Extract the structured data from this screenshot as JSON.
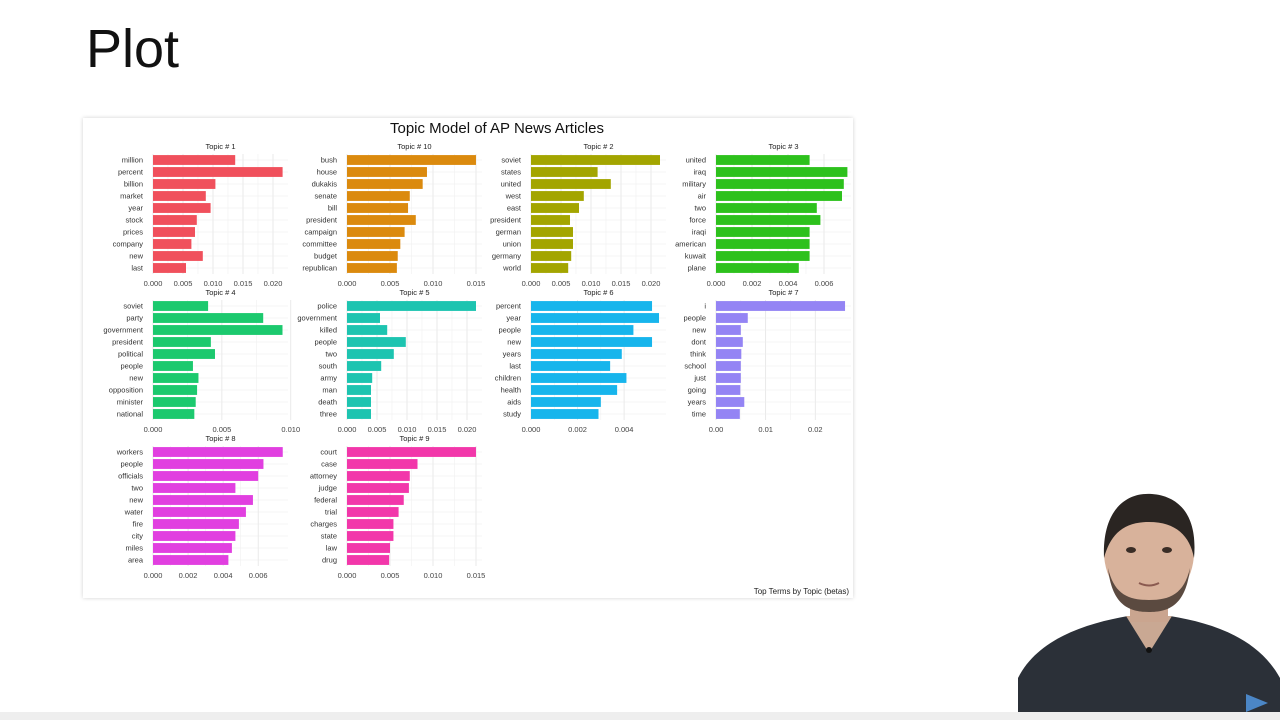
{
  "slide": {
    "title": "Plot"
  },
  "chart_data": {
    "type": "bar",
    "orientation": "horizontal",
    "layout": "facet-grid",
    "title": "Topic Model of AP News Articles",
    "caption": "Top Terms by Topic (betas)",
    "grid": true,
    "panels": [
      {
        "title": "Topic # 1",
        "color": "#F0505C",
        "terms": [
          "million",
          "percent",
          "billion",
          "market",
          "year",
          "stock",
          "prices",
          "company",
          "new",
          "last"
        ],
        "values": [
          0.0137,
          0.0216,
          0.0104,
          0.0088,
          0.0096,
          0.0073,
          0.007,
          0.0064,
          0.0083,
          0.0055
        ],
        "xlim": [
          0,
          0.0225
        ],
        "ticks": [
          0,
          0.005,
          0.01,
          0.015,
          0.02
        ],
        "tick_labels": [
          "0.000",
          "0.005",
          "0.010",
          "0.015",
          "0.020"
        ]
      },
      {
        "title": "Topic # 10",
        "color": "#DB8A0E",
        "terms": [
          "bush",
          "house",
          "dukakis",
          "senate",
          "bill",
          "president",
          "campaign",
          "committee",
          "budget",
          "republican"
        ],
        "values": [
          0.015,
          0.0093,
          0.0088,
          0.0073,
          0.0071,
          0.008,
          0.0067,
          0.0062,
          0.0059,
          0.0058
        ],
        "xlim": [
          0,
          0.0157
        ],
        "ticks": [
          0,
          0.005,
          0.01,
          0.015
        ],
        "tick_labels": [
          "0.000",
          "0.005",
          "0.010",
          "0.015"
        ]
      },
      {
        "title": "Topic # 2",
        "color": "#A3A500",
        "terms": [
          "soviet",
          "states",
          "united",
          "west",
          "east",
          "president",
          "german",
          "union",
          "germany",
          "world"
        ],
        "values": [
          0.0215,
          0.0111,
          0.0133,
          0.0088,
          0.008,
          0.0065,
          0.007,
          0.007,
          0.0067,
          0.0062
        ],
        "xlim": [
          0,
          0.0225
        ],
        "ticks": [
          0,
          0.005,
          0.01,
          0.015,
          0.02
        ],
        "tick_labels": [
          "0.000",
          "0.005",
          "0.010",
          "0.015",
          "0.020"
        ]
      },
      {
        "title": "Topic # 3",
        "color": "#2DC11C",
        "terms": [
          "united",
          "iraq",
          "military",
          "air",
          "two",
          "force",
          "iraqi",
          "american",
          "kuwait",
          "plane"
        ],
        "values": [
          0.0052,
          0.0073,
          0.0071,
          0.007,
          0.0056,
          0.0058,
          0.0052,
          0.0052,
          0.0052,
          0.0046
        ],
        "xlim": [
          0,
          0.0075
        ],
        "ticks": [
          0,
          0.002,
          0.004,
          0.006
        ],
        "tick_labels": [
          "0.000",
          "0.002",
          "0.004",
          "0.006"
        ]
      },
      {
        "title": "Topic # 4",
        "color": "#1CC96E",
        "terms": [
          "soviet",
          "party",
          "government",
          "president",
          "political",
          "people",
          "new",
          "opposition",
          "minister",
          "national"
        ],
        "values": [
          0.004,
          0.008,
          0.0094,
          0.0042,
          0.0045,
          0.0029,
          0.0033,
          0.0032,
          0.0031,
          0.003
        ],
        "xlim": [
          0,
          0.0098
        ],
        "ticks": [
          0,
          0.005,
          0.01
        ],
        "tick_labels": [
          "0.000",
          "0.005",
          "0.010"
        ]
      },
      {
        "title": "Topic # 5",
        "color": "#1DC4B0",
        "terms": [
          "police",
          "government",
          "killed",
          "people",
          "two",
          "south",
          "army",
          "man",
          "death",
          "three"
        ],
        "values": [
          0.0215,
          0.0055,
          0.0067,
          0.0098,
          0.0078,
          0.0057,
          0.0042,
          0.004,
          0.004,
          0.004
        ],
        "xlim": [
          0,
          0.0225
        ],
        "ticks": [
          0,
          0.005,
          0.01,
          0.015,
          0.02
        ],
        "tick_labels": [
          "0.000",
          "0.005",
          "0.010",
          "0.015",
          "0.020"
        ]
      },
      {
        "title": "Topic # 6",
        "color": "#17B5EC",
        "terms": [
          "percent",
          "year",
          "people",
          "new",
          "years",
          "last",
          "children",
          "health",
          "aids",
          "study"
        ],
        "values": [
          0.0052,
          0.0055,
          0.0044,
          0.0052,
          0.0039,
          0.0034,
          0.0041,
          0.0037,
          0.003,
          0.0029
        ],
        "xlim": [
          0,
          0.0058
        ],
        "ticks": [
          0,
          0.002,
          0.004
        ],
        "tick_labels": [
          "0.000",
          "0.002",
          "0.004"
        ]
      },
      {
        "title": "Topic # 7",
        "color": "#9484F4",
        "terms": [
          "i",
          "people",
          "new",
          "dont",
          "think",
          "school",
          "just",
          "going",
          "years",
          "time"
        ],
        "values": [
          0.026,
          0.0064,
          0.005,
          0.0054,
          0.0051,
          0.005,
          0.005,
          0.0049,
          0.0057,
          0.0048
        ],
        "xlim": [
          0,
          0.0272
        ],
        "ticks": [
          0,
          0.01,
          0.02
        ],
        "tick_labels": [
          "0.00",
          "0.01",
          "0.02"
        ]
      },
      {
        "title": "Topic # 8",
        "color": "#E13FE0",
        "terms": [
          "workers",
          "people",
          "officials",
          "two",
          "new",
          "water",
          "fire",
          "city",
          "miles",
          "area"
        ],
        "values": [
          0.0074,
          0.0063,
          0.006,
          0.0047,
          0.0057,
          0.0053,
          0.0049,
          0.0047,
          0.0045,
          0.0043
        ],
        "xlim": [
          0,
          0.0077
        ],
        "ticks": [
          0,
          0.002,
          0.004,
          0.006
        ],
        "tick_labels": [
          "0.000",
          "0.002",
          "0.004",
          "0.006"
        ]
      },
      {
        "title": "Topic # 9",
        "color": "#F237AA",
        "terms": [
          "court",
          "case",
          "attorney",
          "judge",
          "federal",
          "trial",
          "charges",
          "state",
          "law",
          "drug"
        ],
        "values": [
          0.015,
          0.0082,
          0.0073,
          0.0072,
          0.0066,
          0.006,
          0.0054,
          0.0054,
          0.005,
          0.0049
        ],
        "xlim": [
          0,
          0.0157
        ],
        "ticks": [
          0,
          0.005,
          0.01,
          0.015
        ],
        "tick_labels": [
          "0.000",
          "0.005",
          "0.010",
          "0.015"
        ]
      }
    ]
  }
}
